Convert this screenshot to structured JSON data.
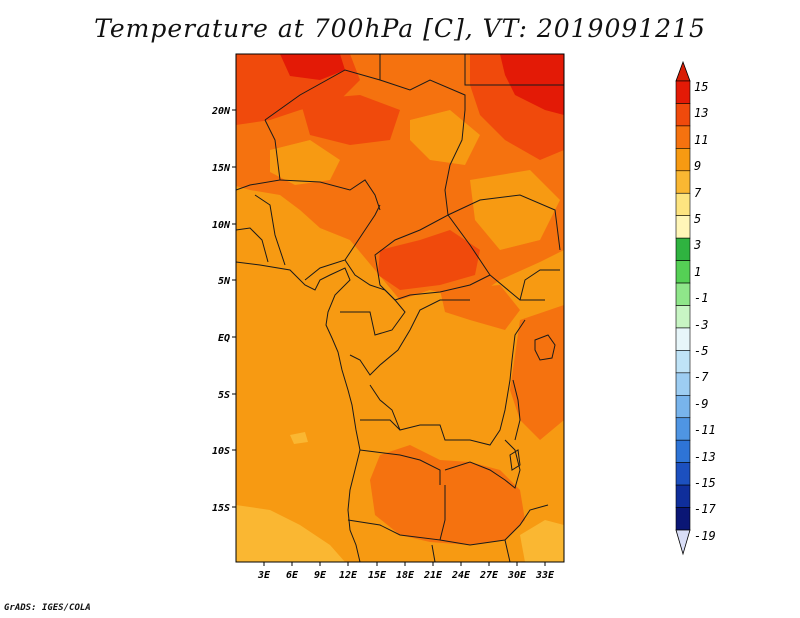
{
  "title": "Temperature at 700hPa [C], VT: 2019091215",
  "credit": "GrADS: IGES/COLA",
  "lat_labels": [
    "20N",
    "15N",
    "10N",
    "5N",
    "EQ",
    "5S",
    "10S",
    "15S"
  ],
  "lon_labels": [
    "3E",
    "6E",
    "9E",
    "12E",
    "15E",
    "18E",
    "21E",
    "24E",
    "27E",
    "30E",
    "33E"
  ],
  "colorbar": {
    "labels": [
      "15",
      "13",
      "11",
      "9",
      "7",
      "5",
      "3",
      "1",
      "-1",
      "-3",
      "-5",
      "-7",
      "-9",
      "-11",
      "-13",
      "-15",
      "-17",
      "-19"
    ],
    "colors": [
      "#e31a06",
      "#f04a0c",
      "#f5720f",
      "#f79a12",
      "#fab732",
      "#fde480",
      "#fff6b8",
      "#2fb340",
      "#55d055",
      "#8fe68a",
      "#c8f5c4",
      "#e7f6fa",
      "#bfe3f7",
      "#9dcdf2",
      "#78b4ec",
      "#4f95e3",
      "#2e74d6",
      "#1c50bf",
      "#0f2e9b",
      "#0a1675"
    ],
    "top_arrow_color": "#d81e05",
    "bottom_arrow_color": "#d9def7"
  },
  "map_colors": {
    "base": "#f79a12",
    "warm": "#f5720f",
    "hot": "#f04a0c",
    "hottest": "#e31a06",
    "cool": "#fab732"
  }
}
